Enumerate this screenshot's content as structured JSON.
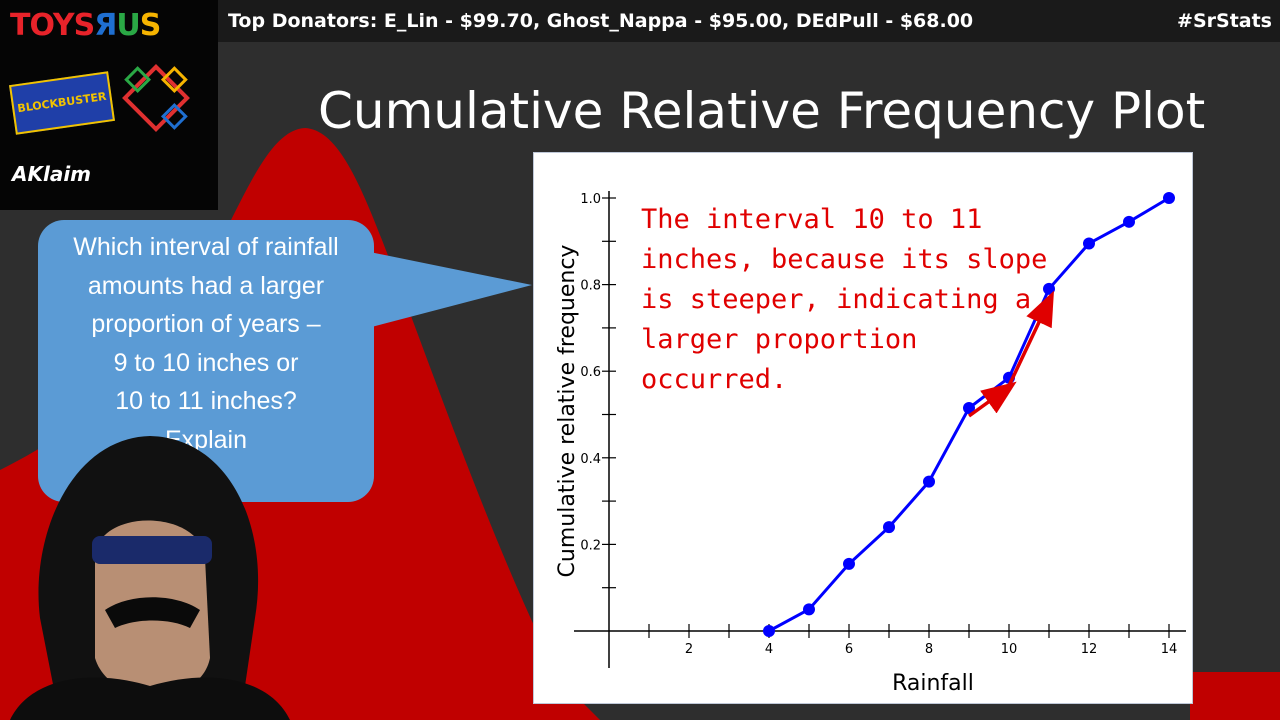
{
  "ticker": {
    "donators": "Top Donators: E_Lin - $99.70, Ghost_Nappa - $95.00, DEdPull - $68.00",
    "hashtag": "#SrStats"
  },
  "logos": {
    "toys": "TOYS R US",
    "blockbuster": "BLOCKBUSTER",
    "enron": "ENRON",
    "acclaim": "AKlaim"
  },
  "slide": {
    "title": "Cumulative Relative Frequency Plot",
    "question": "Which interval of rainfall amounts had a larger proportion of years –\n9 to 10 inches or\n10 to 11 inches?\nExplain",
    "answer": "The interval 10 to 11\ninches, because its slope\nis steeper, indicating a\nlarger proportion\noccurred."
  },
  "colors": {
    "line": "#0000ff",
    "arrow": "#e00000",
    "bubble": "#5b9bd5",
    "bg_red": "#c00000"
  },
  "chart_data": {
    "type": "line",
    "xlabel": "Rainfall",
    "ylabel": "Cumulative relative frequency",
    "x": [
      4,
      5,
      6,
      7,
      8,
      9,
      10,
      11,
      12,
      13,
      14
    ],
    "y": [
      0.0,
      0.05,
      0.155,
      0.24,
      0.345,
      0.515,
      0.585,
      0.79,
      0.895,
      0.945,
      1.0
    ],
    "xlim": [
      0,
      15
    ],
    "ylim": [
      0,
      1.0
    ],
    "x_ticks": [
      2,
      4,
      6,
      8,
      10,
      12,
      14
    ],
    "y_ticks": [
      0.2,
      0.4,
      0.6,
      0.8,
      1.0
    ],
    "y_tick_labels": [
      "0.2",
      "0.4",
      "0.6",
      "0.8",
      "1.0"
    ],
    "annotations": [
      {
        "from": [
          9,
          0.515
        ],
        "to": [
          10,
          0.585
        ]
      },
      {
        "from": [
          10,
          0.585
        ],
        "to": [
          11,
          0.79
        ]
      }
    ]
  }
}
